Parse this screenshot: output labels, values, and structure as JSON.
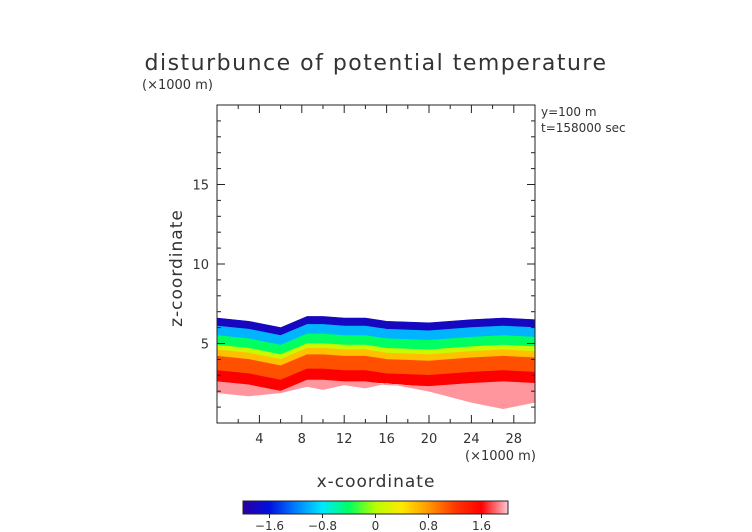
{
  "chart_data": {
    "type": "heatmap",
    "title": "disturbunce of potential temperature",
    "ylabel": "z-coordinate",
    "xlabel": "x-coordinate",
    "y_unit": "(×1000 m)",
    "x_unit": "(×1000 m)",
    "info": [
      "y=100 m",
      "t=158000 sec"
    ],
    "xlim": [
      0,
      30
    ],
    "ylim": [
      0,
      20
    ],
    "x_ticks": [
      4,
      8,
      12,
      16,
      20,
      24,
      28
    ],
    "y_ticks": [
      5,
      10,
      15
    ],
    "colorbar": {
      "range": [
        -2.0,
        2.0
      ],
      "tick_values": [
        -1.6,
        -0.8,
        0,
        0.8,
        1.6
      ],
      "tick_labels": [
        "−1.6",
        "−0.8",
        "0",
        "0.8",
        "1.6"
      ],
      "colors": [
        "#2a00a0",
        "#0010e0",
        "#0080ff",
        "#00e8ff",
        "#00ff60",
        "#b8ff00",
        "#ffe800",
        "#ff9800",
        "#ff3800",
        "#ff0000",
        "#ffc8d2"
      ]
    },
    "field": {
      "x": [
        0,
        3,
        6,
        8.5,
        10,
        12,
        14,
        16,
        20,
        24,
        27,
        30
      ],
      "top_z": [
        6.6,
        6.4,
        6.0,
        6.7,
        6.7,
        6.6,
        6.6,
        6.4,
        6.3,
        6.5,
        6.6,
        6.5
      ],
      "bottom_z": [
        1.9,
        1.7,
        1.9,
        2.3,
        2.1,
        2.4,
        2.2,
        2.5,
        2.0,
        1.3,
        0.9,
        1.3
      ],
      "layers": [
        {
          "value": -1.8,
          "top": 0.0
        },
        {
          "value": -1.0,
          "top": 0.5
        },
        {
          "value": -0.4,
          "top": 1.1
        },
        {
          "value": 0.1,
          "top": 1.7
        },
        {
          "value": 0.6,
          "top": 2.0
        },
        {
          "value": 1.1,
          "top": 2.4
        },
        {
          "value": 1.6,
          "top": 3.3
        },
        {
          "value": 1.9,
          "top": 4.0
        }
      ]
    }
  }
}
